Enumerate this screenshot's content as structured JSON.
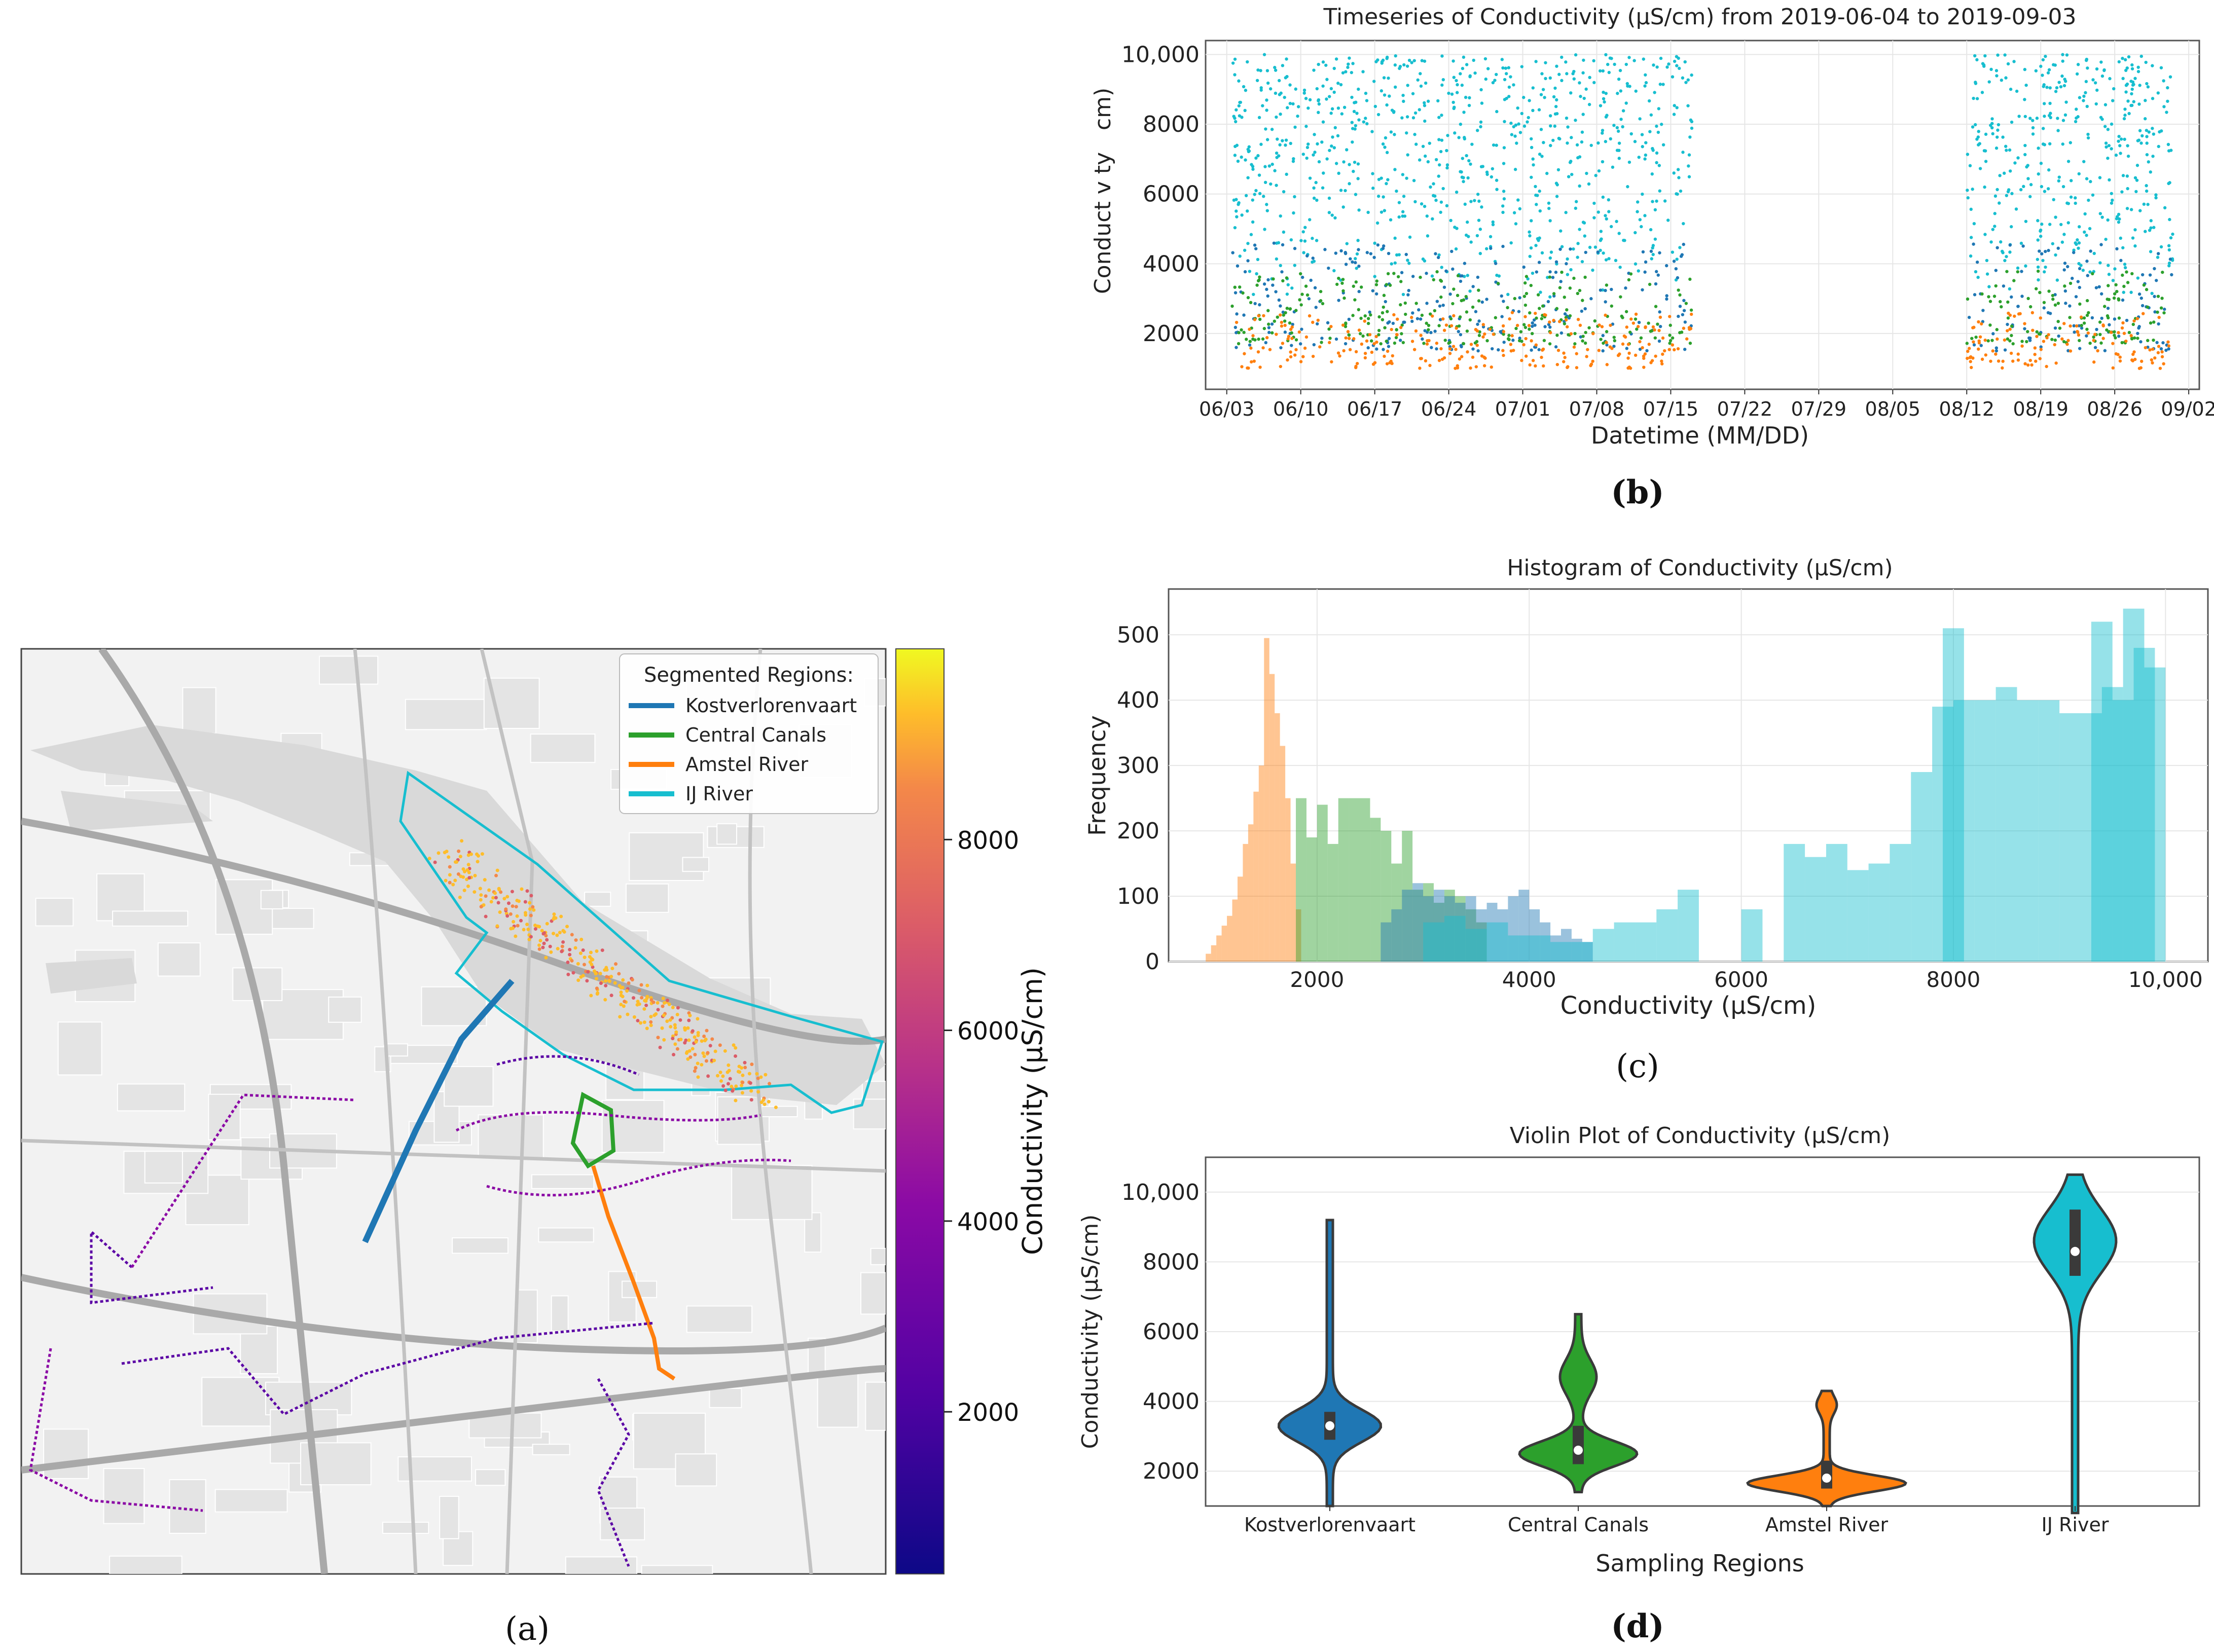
{
  "panels": {
    "a_label": "(a)",
    "b_label": "(b)",
    "c_label": "(c)",
    "d_label": "(d)",
    "a_letter": "a",
    "b_letter": "b",
    "c_letter": "c",
    "d_letter": "d"
  },
  "colors": {
    "kostverlorenvaart": "#1f77b4",
    "central_canals": "#2ca02c",
    "amstel_river": "#ff7f0e",
    "ij_river": "#17becf",
    "map_bg": "#f2f2f2",
    "grid": "#e6e6e6"
  },
  "map": {
    "legend_title": "Segmented Regions:",
    "legend_items": [
      "Kostverlorenvaart",
      "Central Canals",
      "Amstel River",
      "IJ River"
    ],
    "colorbar_label": "Conductivity (μS/cm)",
    "colorbar_ticks": [
      "2000",
      "4000",
      "6000",
      "8000"
    ],
    "colorbar_tick_values": [
      2000,
      4000,
      6000,
      8000
    ],
    "colorbar_range": [
      300,
      10000
    ]
  },
  "chart_data": [
    {
      "id": "b",
      "type": "scatter",
      "title": "Timeseries of Conductivity (μS/cm) from 2019-06-04 to 2019-09-03",
      "xlabel": "Datetime (MM/DD)",
      "ylabel": "Conduct v ty",
      "ylabel_units": "cm)",
      "xticks": [
        "06/03",
        "06/10",
        "06/17",
        "06/24",
        "07/01",
        "07/08",
        "07/15",
        "07/22",
        "07/29",
        "08/05",
        "08/12",
        "08/19",
        "08/26",
        "09/02"
      ],
      "yticks": [
        "2000",
        "4000",
        "6000",
        "8000",
        "10,000"
      ],
      "ytick_values": [
        2000,
        4000,
        6000,
        8000,
        10000
      ],
      "xlim_days": [
        -2,
        92
      ],
      "ylim": [
        400,
        10400
      ],
      "gap_days": [
        44,
        70
      ],
      "series": [
        {
          "name": "IJ River",
          "range": [
            3000,
            10000
          ]
        },
        {
          "name": "Kostverlorenvaart",
          "range": [
            1500,
            4600
          ]
        },
        {
          "name": "Central Canals",
          "range": [
            1700,
            3800
          ]
        },
        {
          "name": "Amstel River",
          "range": [
            1000,
            2600
          ]
        }
      ]
    },
    {
      "id": "c",
      "type": "bar",
      "title": "Histogram of Conductivity (μS/cm)",
      "xlabel": "Conductivity (μS/cm)",
      "ylabel": "Frequency",
      "xticks": [
        "2000",
        "4000",
        "6000",
        "8000",
        "10,000"
      ],
      "xtick_values": [
        2000,
        4000,
        6000,
        8000,
        10000
      ],
      "yticks": [
        "0",
        "100",
        "200",
        "300",
        "400",
        "500"
      ],
      "ytick_values": [
        0,
        100,
        200,
        300,
        400,
        500
      ],
      "xlim": [
        600,
        10400
      ],
      "ylim": [
        0,
        570
      ],
      "series": [
        {
          "name": "Amstel River",
          "bin_width": 50,
          "x": [
            950,
            1000,
            1050,
            1100,
            1150,
            1200,
            1250,
            1300,
            1350,
            1400,
            1450,
            1500,
            1550,
            1600,
            1650,
            1700,
            1750,
            1800
          ],
          "values": [
            12,
            25,
            40,
            55,
            70,
            95,
            130,
            180,
            210,
            260,
            300,
            495,
            440,
            380,
            330,
            250,
            150,
            80
          ]
        },
        {
          "name": "Central Canals",
          "bin_width": 100,
          "x": [
            1800,
            1900,
            2000,
            2100,
            2200,
            2300,
            2400,
            2500,
            2600,
            2700,
            2800,
            2900,
            3000,
            3100,
            3200,
            3300,
            3400,
            3500
          ],
          "values": [
            250,
            190,
            240,
            180,
            250,
            250,
            250,
            220,
            200,
            150,
            200,
            110,
            120,
            90,
            110,
            100,
            80,
            60
          ]
        },
        {
          "name": "Kostverlorenvaart",
          "bin_width": 100,
          "x": [
            2600,
            2700,
            2800,
            2900,
            3000,
            3100,
            3200,
            3300,
            3400,
            3500,
            3600,
            3700,
            3800,
            3900,
            4000,
            4100,
            4200,
            4300,
            4400,
            4500
          ],
          "values": [
            60,
            80,
            110,
            120,
            100,
            110,
            100,
            90,
            100,
            80,
            90,
            80,
            100,
            110,
            80,
            60,
            40,
            50,
            35,
            30
          ]
        },
        {
          "name": "IJ River",
          "bin_width": 200,
          "x": [
            3000,
            3200,
            3400,
            3600,
            3800,
            4000,
            4200,
            4400,
            4600,
            4800,
            5000,
            5200,
            5400,
            6000,
            6400,
            6600,
            6800,
            7000,
            7200,
            7400,
            7600,
            7800,
            7900,
            8000,
            8200,
            8400,
            8600,
            8800,
            9000,
            9200,
            9300,
            9400,
            9500,
            9600,
            9700,
            9800
          ],
          "values": [
            60,
            70,
            50,
            60,
            40,
            40,
            30,
            30,
            50,
            60,
            60,
            80,
            110,
            80,
            180,
            160,
            180,
            140,
            150,
            180,
            290,
            390,
            510,
            400,
            400,
            420,
            400,
            400,
            380,
            380,
            520,
            420,
            400,
            540,
            480,
            450
          ]
        }
      ]
    },
    {
      "id": "d",
      "type": "violin",
      "title": "Violin Plot of Conductivity (μS/cm)",
      "xlabel": "Sampling Regions",
      "ylabel": "Conductivity (μS/cm)",
      "categories": [
        "Kostverlorenvaart",
        "Central Canals",
        "Amstel River",
        "IJ River"
      ],
      "yticks": [
        "2000",
        "4000",
        "6000",
        "8000",
        "10,000"
      ],
      "ytick_values": [
        2000,
        4000,
        6000,
        8000,
        10000
      ],
      "ylim": [
        1000,
        11000
      ],
      "min": [
        1000,
        1400,
        1000,
        800
      ],
      "max": [
        9200,
        6500,
        4300,
        10500
      ],
      "q1": [
        2900,
        2200,
        1500,
        7600
      ],
      "median": [
        3300,
        2600,
        1800,
        8300
      ],
      "q3": [
        3700,
        3300,
        2300,
        9500
      ]
    }
  ]
}
